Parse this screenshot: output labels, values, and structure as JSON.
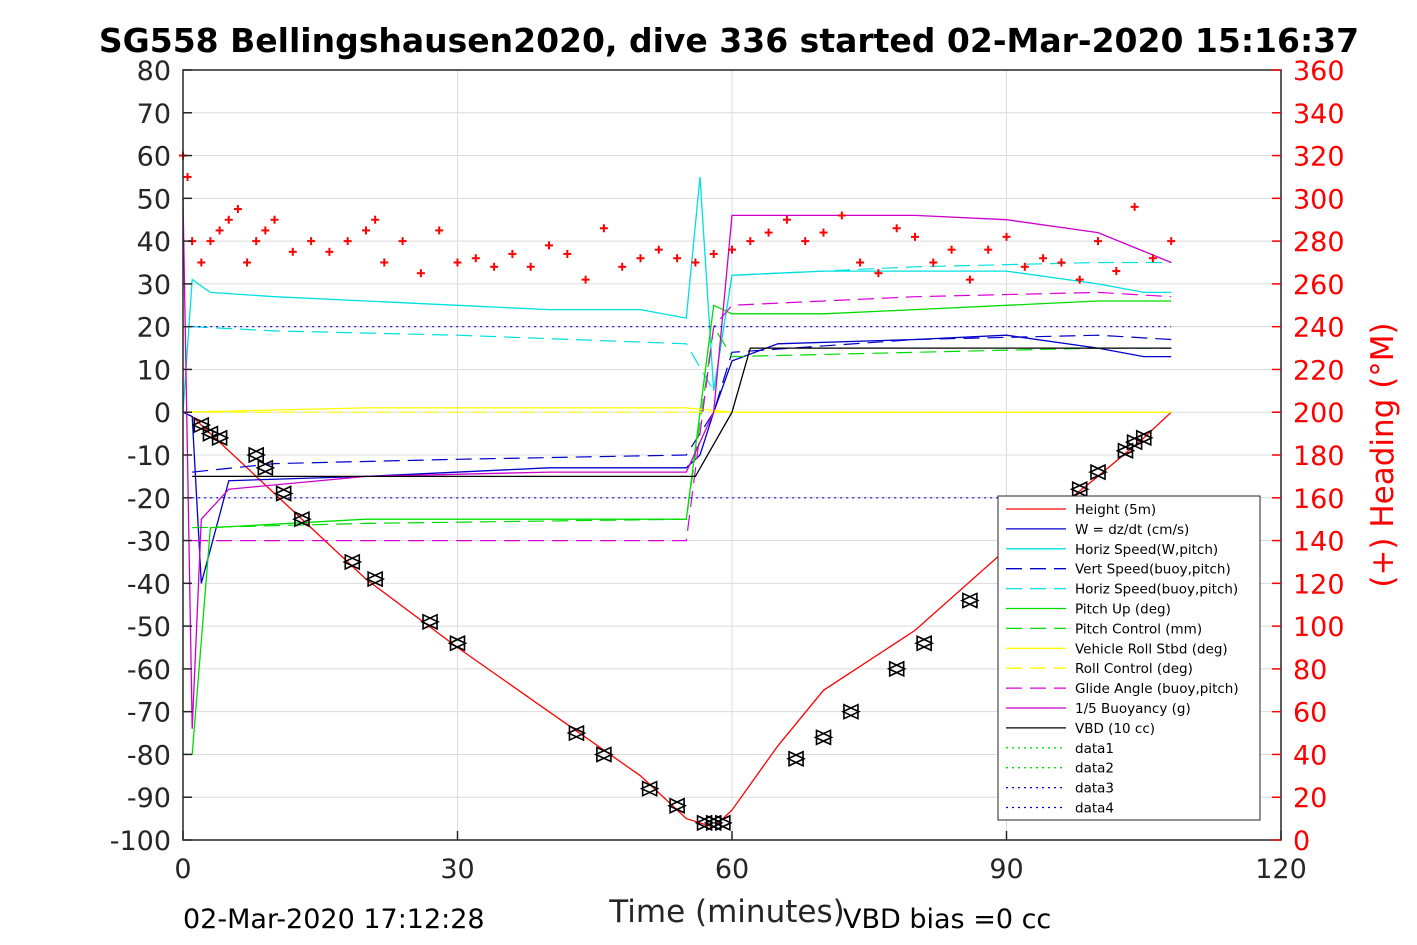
{
  "chart_data": {
    "type": "line",
    "title": "SG558 Bellingshausen2020, dive 336 started 02-Mar-2020 15:16:37",
    "xlabel": "Time (minutes)",
    "ylabel_right": "(+) Heading (°M)",
    "footer_left": "02-Mar-2020 17:12:28",
    "footer_right": "VBD bias =0 cc",
    "xlim": [
      0,
      120
    ],
    "ylim_left": [
      -100,
      80
    ],
    "ylim_right": [
      0,
      360
    ],
    "x_ticks": [
      0,
      30,
      60,
      90,
      120
    ],
    "y_ticks_left": [
      80,
      70,
      60,
      50,
      40,
      30,
      20,
      10,
      0,
      -10,
      -20,
      -30,
      -40,
      -50,
      -60,
      -70,
      -80,
      -90,
      -100
    ],
    "y_ticks_right": [
      360,
      340,
      320,
      300,
      280,
      260,
      240,
      220,
      200,
      180,
      160,
      140,
      120,
      100,
      80,
      60,
      40,
      20,
      0
    ],
    "grid": true,
    "legend_position": "bottom-right",
    "colors": {
      "height": "#ff0000",
      "w": "#0000cc",
      "horiz_speed": "#00e0e0",
      "pitch": "#00dd00",
      "roll": "#ffff00",
      "glide": "#dd00dd",
      "buoyancy": "#cc00cc",
      "vbd": "#000000",
      "heading": "#ff0000",
      "markers": "#000000"
    },
    "series": [
      {
        "name": "Height (5m)",
        "style": "solid",
        "color": "#ff0000",
        "x": [
          0,
          1,
          2,
          10,
          20,
          30,
          40,
          50,
          55,
          58,
          60,
          65,
          70,
          80,
          90,
          100,
          105,
          108
        ],
        "y": [
          0,
          -1,
          -3,
          -19,
          -39,
          -55,
          -70,
          -85,
          -95,
          -97,
          -93,
          -78,
          -65,
          -51,
          -32,
          -15,
          -6,
          0
        ]
      },
      {
        "name": "W = dz/dt (cm/s)",
        "style": "solid",
        "color": "#0000cc",
        "x": [
          0,
          1,
          2,
          5,
          20,
          40,
          55,
          56.5,
          58,
          60,
          65,
          80,
          90,
          100,
          105,
          108
        ],
        "y": [
          0,
          -1,
          -40,
          -16,
          -15,
          -13,
          -13,
          -10,
          0,
          12,
          16,
          17,
          18,
          15,
          13,
          13
        ]
      },
      {
        "name": "Horiz Speed(W,pitch)",
        "style": "solid",
        "color": "#00e0e0",
        "x": [
          0,
          1,
          3,
          10,
          20,
          30,
          40,
          50,
          55,
          56.5,
          58,
          60,
          70,
          80,
          90,
          100,
          105,
          108
        ],
        "y": [
          0,
          31,
          28,
          27,
          26,
          25,
          24,
          24,
          22,
          55,
          5,
          32,
          33,
          33,
          33,
          30,
          28,
          28
        ]
      },
      {
        "name": "Vert Speed(buoy,pitch)",
        "style": "dashed",
        "color": "#0000cc",
        "x": [
          1,
          10,
          30,
          55,
          58,
          60,
          80,
          100,
          108
        ],
        "y": [
          -14,
          -12,
          -11,
          -10,
          0,
          14,
          17,
          18,
          17
        ]
      },
      {
        "name": "Horiz Speed(buoy,pitch)",
        "style": "dashed",
        "color": "#00e0e0",
        "x": [
          1,
          10,
          30,
          55,
          58,
          60,
          80,
          100,
          108
        ],
        "y": [
          20,
          19,
          18,
          16,
          5,
          32,
          34,
          35,
          35
        ]
      },
      {
        "name": "Pitch Up (deg)",
        "style": "solid",
        "color": "#00dd00",
        "x": [
          0,
          1,
          3,
          20,
          40,
          55,
          58,
          60,
          70,
          80,
          90,
          100,
          108
        ],
        "y": [
          -80,
          -80,
          -27,
          -25,
          -25,
          -25,
          25,
          23,
          23,
          24,
          25,
          26,
          26
        ]
      },
      {
        "name": "Pitch Control (mm)",
        "style": "dashed",
        "color": "#00dd00",
        "x": [
          1,
          20,
          55,
          58,
          60,
          80,
          100,
          108
        ],
        "y": [
          -27,
          -26,
          -25,
          20,
          13,
          14,
          15,
          15
        ]
      },
      {
        "name": "Vehicle Roll Stbd (deg)",
        "style": "solid",
        "color": "#ffff00",
        "x": [
          0,
          20,
          40,
          55,
          60,
          80,
          100,
          108
        ],
        "y": [
          0,
          1,
          1,
          1,
          0,
          0,
          0,
          0
        ]
      },
      {
        "name": "Roll Control (deg)",
        "style": "dashed",
        "color": "#ffff00",
        "x": [
          0,
          108
        ],
        "y": [
          0,
          0
        ]
      },
      {
        "name": "Glide Angle (buoy,pitch)",
        "style": "dashed",
        "color": "#dd00dd",
        "x": [
          1,
          20,
          55,
          58,
          60,
          80,
          100,
          108
        ],
        "y": [
          -30,
          -30,
          -30,
          20,
          25,
          27,
          28,
          27
        ]
      },
      {
        "name": "1/5 Buoyancy (g)",
        "style": "solid",
        "color": "#cc00cc",
        "x": [
          0,
          1,
          2,
          5,
          20,
          40,
          55,
          58,
          60,
          65,
          80,
          90,
          100,
          108
        ],
        "y": [
          50,
          -74,
          -25,
          -18,
          -15,
          -14,
          -14,
          0,
          46,
          46,
          46,
          45,
          42,
          35
        ]
      },
      {
        "name": "VBD (10 cc)",
        "style": "solid",
        "color": "#000000",
        "x": [
          1,
          3,
          20,
          40,
          56,
          60,
          62,
          80,
          100,
          108
        ],
        "y": [
          -15,
          -15,
          -15,
          -15,
          -15,
          0,
          15,
          15,
          15,
          15
        ]
      },
      {
        "name": "data1",
        "style": "dotted",
        "color": "#00dd00",
        "x": [],
        "y": []
      },
      {
        "name": "data2",
        "style": "dotted",
        "color": "#00dd00",
        "x": [],
        "y": []
      },
      {
        "name": "data3",
        "style": "dotted",
        "color": "#0000cc",
        "x": [
          1,
          108
        ],
        "y": [
          20,
          20
        ]
      },
      {
        "name": "data4",
        "style": "dotted",
        "color": "#0000cc",
        "x": [
          1,
          108
        ],
        "y": [
          -20,
          -20
        ]
      }
    ],
    "heading": {
      "axis": "right",
      "color": "#ff0000",
      "x": [
        0,
        0.5,
        1,
        2,
        3,
        4,
        5,
        6,
        7,
        8,
        9,
        10,
        12,
        14,
        16,
        18,
        20,
        21,
        22,
        24,
        26,
        28,
        30,
        32,
        34,
        36,
        38,
        40,
        42,
        44,
        46,
        48,
        50,
        52,
        54,
        56,
        58,
        60,
        62,
        64,
        66,
        68,
        70,
        72,
        74,
        76,
        78,
        80,
        82,
        84,
        86,
        88,
        90,
        92,
        94,
        96,
        98,
        100,
        102,
        104,
        106,
        108
      ],
      "y": [
        320,
        310,
        280,
        270,
        280,
        285,
        290,
        295,
        270,
        280,
        285,
        290,
        275,
        280,
        275,
        280,
        285,
        290,
        270,
        280,
        265,
        285,
        270,
        272,
        268,
        274,
        268,
        278,
        274,
        262,
        286,
        268,
        272,
        276,
        272,
        270,
        274,
        276,
        280,
        284,
        290,
        280,
        284,
        292,
        270,
        265,
        286,
        282,
        270,
        276,
        262,
        276,
        282,
        268,
        272,
        270,
        262,
        280,
        266,
        296,
        272,
        280
      ]
    },
    "dive_markers": {
      "x": [
        2,
        3,
        4,
        8,
        9,
        11,
        13,
        18.5,
        21,
        27,
        30,
        43,
        46,
        51,
        54,
        57,
        58,
        59,
        67,
        70,
        73,
        78,
        81,
        86,
        95,
        98,
        100,
        103,
        104,
        105
      ],
      "y": [
        -3,
        -5,
        -6,
        -10,
        -13,
        -19,
        -25,
        -35,
        -39,
        -49,
        -54,
        -75,
        -80,
        -88,
        -92,
        -96,
        -96,
        -96,
        -81,
        -76,
        -70,
        -60,
        -54,
        -44,
        -28,
        -18,
        -14,
        -9,
        -7,
        -6
      ]
    }
  }
}
